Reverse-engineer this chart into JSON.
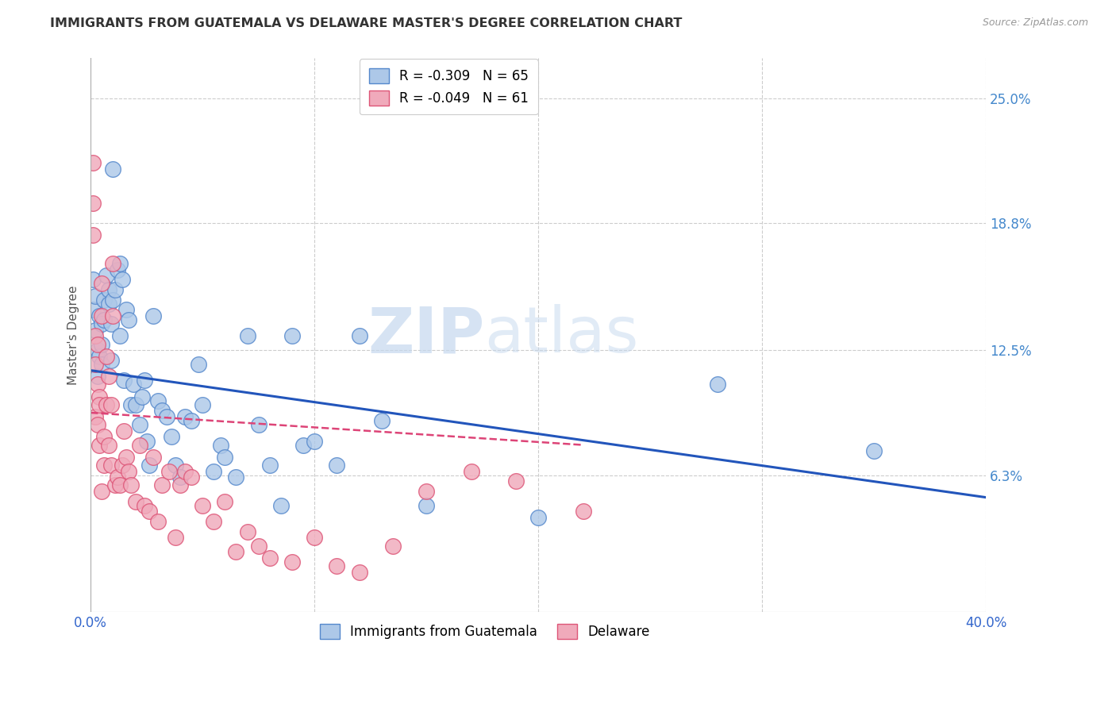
{
  "title": "IMMIGRANTS FROM GUATEMALA VS DELAWARE MASTER'S DEGREE CORRELATION CHART",
  "source": "Source: ZipAtlas.com",
  "ylabel": "Master's Degree",
  "right_yticks": [
    "25.0%",
    "18.8%",
    "12.5%",
    "6.3%"
  ],
  "right_ytick_vals": [
    0.25,
    0.188,
    0.125,
    0.063
  ],
  "xmin": 0.0,
  "xmax": 0.4,
  "ymin": -0.005,
  "ymax": 0.27,
  "legend_blue_r": "-0.309",
  "legend_blue_n": "65",
  "legend_pink_r": "-0.049",
  "legend_pink_n": "61",
  "legend_label_blue": "Immigrants from Guatemala",
  "legend_label_pink": "Delaware",
  "watermark_zip": "ZIP",
  "watermark_atlas": "atlas",
  "blue_color": "#adc8e8",
  "blue_edge": "#5588cc",
  "pink_color": "#f0aabb",
  "pink_edge": "#dd5577",
  "blue_line_color": "#2255bb",
  "pink_line_color": "#dd4477",
  "scatter_blue_x": [
    0.001,
    0.001,
    0.002,
    0.002,
    0.003,
    0.003,
    0.004,
    0.004,
    0.005,
    0.005,
    0.005,
    0.006,
    0.006,
    0.007,
    0.008,
    0.008,
    0.009,
    0.009,
    0.01,
    0.01,
    0.011,
    0.012,
    0.013,
    0.013,
    0.014,
    0.015,
    0.016,
    0.017,
    0.018,
    0.019,
    0.02,
    0.022,
    0.023,
    0.024,
    0.025,
    0.026,
    0.028,
    0.03,
    0.032,
    0.034,
    0.036,
    0.038,
    0.04,
    0.042,
    0.045,
    0.048,
    0.05,
    0.055,
    0.058,
    0.06,
    0.065,
    0.07,
    0.075,
    0.08,
    0.085,
    0.09,
    0.095,
    0.1,
    0.11,
    0.12,
    0.13,
    0.15,
    0.2,
    0.28,
    0.35
  ],
  "scatter_blue_y": [
    0.145,
    0.16,
    0.152,
    0.135,
    0.125,
    0.112,
    0.142,
    0.122,
    0.138,
    0.128,
    0.118,
    0.15,
    0.14,
    0.162,
    0.155,
    0.148,
    0.138,
    0.12,
    0.215,
    0.15,
    0.155,
    0.165,
    0.168,
    0.132,
    0.16,
    0.11,
    0.145,
    0.14,
    0.098,
    0.108,
    0.098,
    0.088,
    0.102,
    0.11,
    0.08,
    0.068,
    0.142,
    0.1,
    0.095,
    0.092,
    0.082,
    0.068,
    0.062,
    0.092,
    0.09,
    0.118,
    0.098,
    0.065,
    0.078,
    0.072,
    0.062,
    0.132,
    0.088,
    0.068,
    0.048,
    0.132,
    0.078,
    0.08,
    0.068,
    0.132,
    0.09,
    0.048,
    0.042,
    0.108,
    0.075
  ],
  "scatter_pink_x": [
    0.001,
    0.001,
    0.001,
    0.002,
    0.002,
    0.002,
    0.003,
    0.003,
    0.003,
    0.004,
    0.004,
    0.004,
    0.005,
    0.005,
    0.005,
    0.006,
    0.006,
    0.007,
    0.007,
    0.008,
    0.008,
    0.009,
    0.009,
    0.01,
    0.01,
    0.011,
    0.012,
    0.013,
    0.014,
    0.015,
    0.016,
    0.017,
    0.018,
    0.02,
    0.022,
    0.024,
    0.026,
    0.028,
    0.03,
    0.032,
    0.035,
    0.038,
    0.04,
    0.042,
    0.045,
    0.05,
    0.055,
    0.06,
    0.065,
    0.07,
    0.075,
    0.08,
    0.09,
    0.1,
    0.11,
    0.12,
    0.135,
    0.15,
    0.17,
    0.19,
    0.22
  ],
  "scatter_pink_y": [
    0.198,
    0.218,
    0.182,
    0.132,
    0.118,
    0.092,
    0.128,
    0.108,
    0.088,
    0.102,
    0.098,
    0.078,
    0.158,
    0.142,
    0.055,
    0.082,
    0.068,
    0.122,
    0.098,
    0.112,
    0.078,
    0.098,
    0.068,
    0.168,
    0.142,
    0.058,
    0.062,
    0.058,
    0.068,
    0.085,
    0.072,
    0.065,
    0.058,
    0.05,
    0.078,
    0.048,
    0.045,
    0.072,
    0.04,
    0.058,
    0.065,
    0.032,
    0.058,
    0.065,
    0.062,
    0.048,
    0.04,
    0.05,
    0.025,
    0.035,
    0.028,
    0.022,
    0.02,
    0.032,
    0.018,
    0.015,
    0.028,
    0.055,
    0.065,
    0.06,
    0.045
  ],
  "blue_line_x0": 0.0,
  "blue_line_x1": 0.4,
  "blue_line_y0": 0.115,
  "blue_line_y1": 0.052,
  "pink_line_x0": 0.0,
  "pink_line_x1": 0.22,
  "pink_line_y0": 0.094,
  "pink_line_y1": 0.078
}
